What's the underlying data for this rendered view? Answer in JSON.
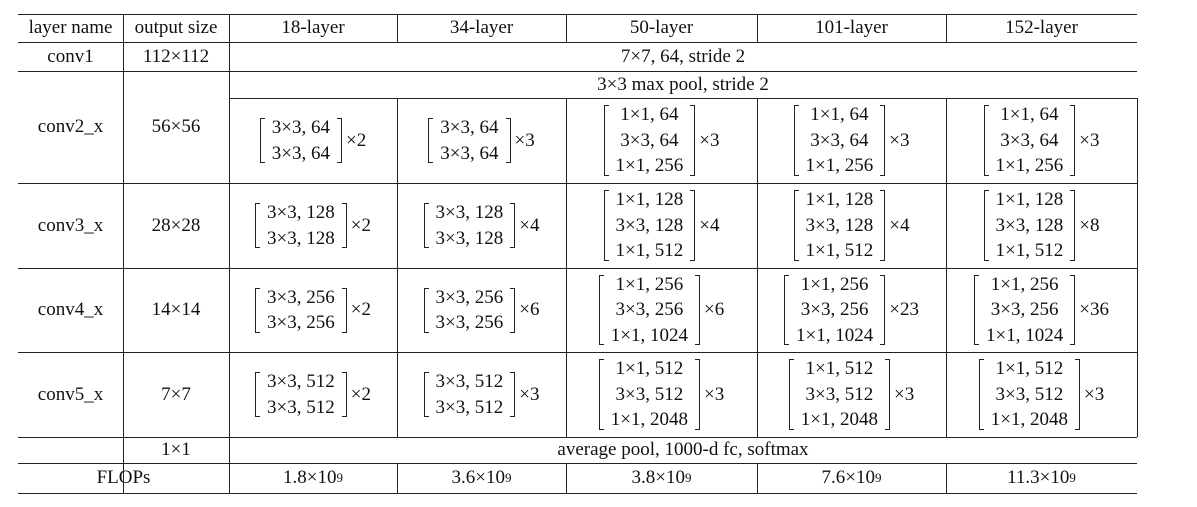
{
  "header": [
    "layer name",
    "output size",
    "18-layer",
    "34-layer",
    "50-layer",
    "101-layer",
    "152-layer"
  ],
  "conv1": {
    "name": "conv1",
    "output": "112×112",
    "span": "7×7, 64, stride 2"
  },
  "stages": [
    {
      "name": "conv2_x",
      "output": "56×56",
      "pool": "3×3 max pool, stride 2",
      "blocks": [
        {
          "lines": [
            "3×3, 64",
            "3×3, 64"
          ],
          "times": "×2"
        },
        {
          "lines": [
            "3×3, 64",
            "3×3, 64"
          ],
          "times": "×3"
        },
        {
          "lines": [
            "1×1, 64",
            "3×3, 64",
            "1×1, 256"
          ],
          "times": "×3"
        },
        {
          "lines": [
            "1×1, 64",
            "3×3, 64",
            "1×1, 256"
          ],
          "times": "×3"
        },
        {
          "lines": [
            "1×1, 64",
            "3×3, 64",
            "1×1, 256"
          ],
          "times": "×3"
        }
      ]
    },
    {
      "name": "conv3_x",
      "output": "28×28",
      "blocks": [
        {
          "lines": [
            "3×3, 128",
            "3×3, 128"
          ],
          "times": "×2"
        },
        {
          "lines": [
            "3×3, 128",
            "3×3, 128"
          ],
          "times": "×4"
        },
        {
          "lines": [
            "1×1, 128",
            "3×3, 128",
            "1×1, 512"
          ],
          "times": "×4"
        },
        {
          "lines": [
            "1×1, 128",
            "3×3, 128",
            "1×1, 512"
          ],
          "times": "×4"
        },
        {
          "lines": [
            "1×1, 128",
            "3×3, 128",
            "1×1, 512"
          ],
          "times": "×8"
        }
      ]
    },
    {
      "name": "conv4_x",
      "output": "14×14",
      "blocks": [
        {
          "lines": [
            "3×3, 256",
            "3×3, 256"
          ],
          "times": "×2"
        },
        {
          "lines": [
            "3×3, 256",
            "3×3, 256"
          ],
          "times": "×6"
        },
        {
          "lines": [
            "1×1, 256",
            "3×3, 256",
            "1×1, 1024"
          ],
          "times": "×6"
        },
        {
          "lines": [
            "1×1, 256",
            "3×3, 256",
            "1×1, 1024"
          ],
          "times": "×23"
        },
        {
          "lines": [
            "1×1, 256",
            "3×3, 256",
            "1×1, 1024"
          ],
          "times": "×36"
        }
      ]
    },
    {
      "name": "conv5_x",
      "output": "7×7",
      "blocks": [
        {
          "lines": [
            "3×3, 512",
            "3×3, 512"
          ],
          "times": "×2"
        },
        {
          "lines": [
            "3×3, 512",
            "3×3, 512"
          ],
          "times": "×3"
        },
        {
          "lines": [
            "1×1, 512",
            "3×3, 512",
            "1×1, 2048"
          ],
          "times": "×3"
        },
        {
          "lines": [
            "1×1, 512",
            "3×3, 512",
            "1×1, 2048"
          ],
          "times": "×3"
        },
        {
          "lines": [
            "1×1, 512",
            "3×3, 512",
            "1×1, 2048"
          ],
          "times": "×3"
        }
      ]
    }
  ],
  "final": {
    "output": "1×1",
    "span": "average pool, 1000-d fc, softmax"
  },
  "flops": {
    "name": "FLOPs",
    "values": [
      {
        "base": "1.8×10",
        "exp": "9"
      },
      {
        "base": "3.6×10",
        "exp": "9"
      },
      {
        "base": "3.8×10",
        "exp": "9"
      },
      {
        "base": "7.6×10",
        "exp": "9"
      },
      {
        "base": "11.3×10",
        "exp": "9"
      }
    ]
  }
}
